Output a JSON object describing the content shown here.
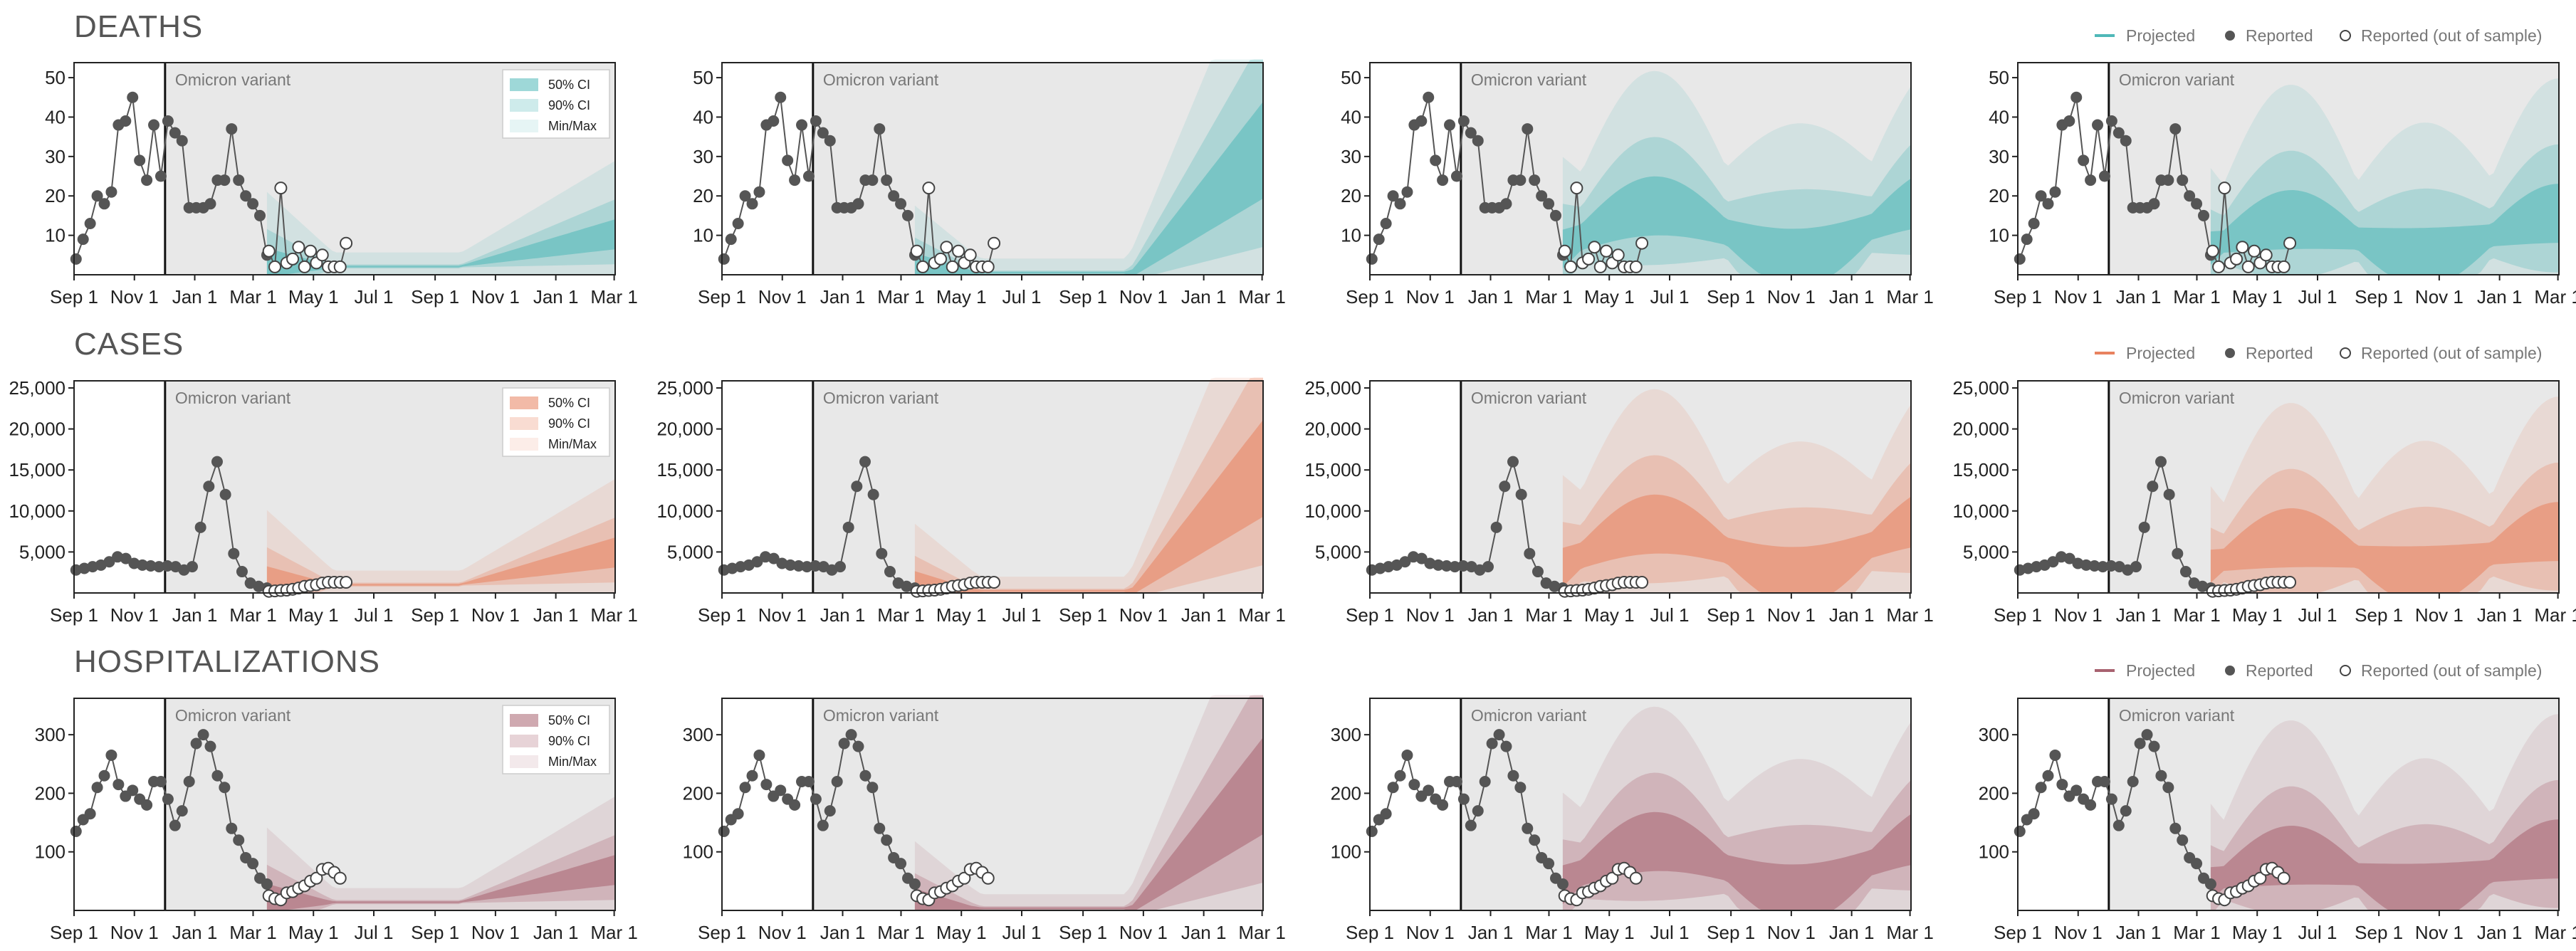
{
  "sections": [
    {
      "title": "DEATHS",
      "color": "#4fb8b8",
      "ylim": [
        0,
        52
      ],
      "yticks": [
        "10",
        "20",
        "30",
        "40",
        "50"
      ],
      "ytick_vals": [
        10,
        20,
        30,
        40,
        50
      ]
    },
    {
      "title": "CASES",
      "color": "#e8825f",
      "ylim": [
        0,
        25000
      ],
      "yticks": [
        "5,000",
        "10,000",
        "15,000",
        "20,000",
        "25,000"
      ],
      "ytick_vals": [
        5000,
        10000,
        15000,
        20000,
        25000
      ]
    },
    {
      "title": "HOSPITALIZATIONS",
      "color": "#a86270",
      "ylim": [
        0,
        350
      ],
      "yticks": [
        "100",
        "200",
        "300"
      ],
      "ytick_vals": [
        100,
        200,
        300
      ]
    }
  ],
  "x_ticks": [
    "Sep 1",
    "Nov 1",
    "Jan 1",
    "Mar 1",
    "May 1",
    "Jul 1",
    "Sep 1",
    "Nov 1",
    "Jan 1",
    "Mar 1"
  ],
  "omicron_label": "Omicron variant",
  "ci_legend": [
    "50% CI",
    "90% CI",
    "Min/Max"
  ],
  "legend": {
    "projected": "Projected",
    "reported": "Reported",
    "out_of_sample": "Reported (out of sample)"
  },
  "chart_data": {
    "type": "line",
    "layout": "3 rows (Deaths, Cases, Hospitalizations) × 4 scenario panels",
    "x_range": [
      "Sep 1",
      "Mar 1 (next year)"
    ],
    "projection_start": "Mar 15",
    "deaths_reported": [
      4,
      9,
      13,
      20,
      18,
      21,
      38,
      39,
      45,
      29,
      24,
      38,
      25,
      39,
      36,
      34,
      17,
      17,
      17,
      18,
      24,
      24,
      37,
      24,
      20,
      18,
      15,
      5
    ],
    "deaths_out_of_sample": [
      6,
      2,
      22,
      3,
      4,
      7,
      2,
      6,
      3,
      5,
      2,
      2,
      2,
      8
    ],
    "cases_reported": [
      2800,
      3000,
      3200,
      3400,
      3800,
      4400,
      4200,
      3600,
      3400,
      3300,
      3200,
      3300,
      3200,
      2800,
      3200,
      8000,
      13000,
      16000,
      12000,
      4800,
      2600,
      1200,
      800,
      600
    ],
    "cases_out_of_sample": [
      200,
      250,
      300,
      350,
      450,
      600,
      800,
      900,
      1000,
      1200,
      1300,
      1300,
      1300,
      1300
    ],
    "hosp_reported": [
      135,
      155,
      165,
      210,
      230,
      265,
      215,
      195,
      205,
      190,
      180,
      220,
      220,
      190,
      145,
      170,
      220,
      285,
      300,
      280,
      230,
      210,
      140,
      120,
      90,
      80,
      55,
      45
    ],
    "hosp_out_of_sample": [
      25,
      20,
      18,
      30,
      32,
      38,
      42,
      50,
      55,
      70,
      72,
      65,
      55
    ]
  }
}
